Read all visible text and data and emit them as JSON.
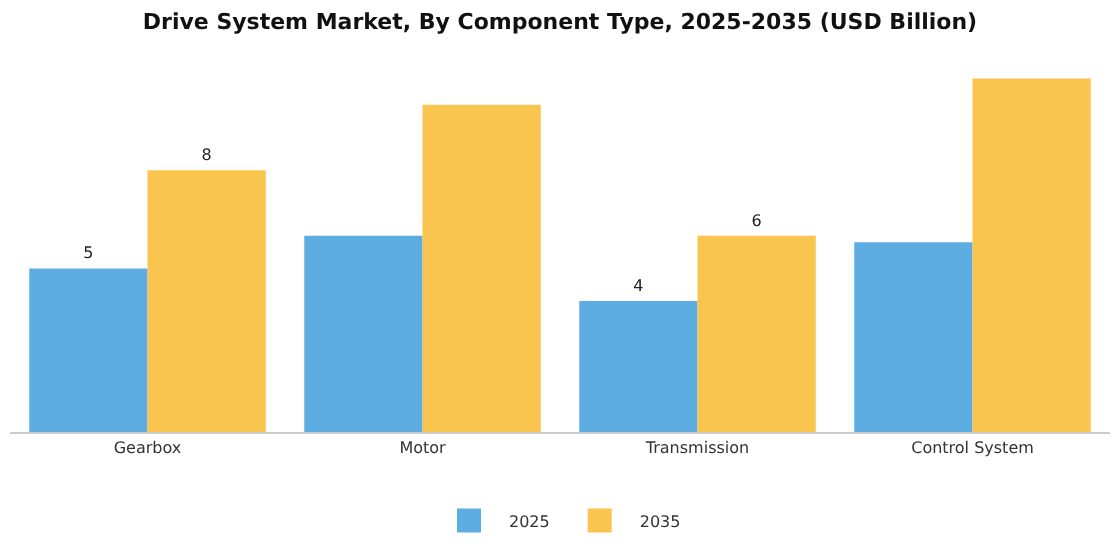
{
  "chart_data": {
    "type": "bar",
    "title": "Drive System Market, By Component Type, 2025-2035 (USD Billion)",
    "categories": [
      "Gearbox",
      "Motor",
      "Transmission",
      "Control System"
    ],
    "series": [
      {
        "name": "2025",
        "color": "#5dade2",
        "values": [
          5,
          6,
          4,
          5.8
        ],
        "value_labels": [
          "5",
          null,
          "4",
          null
        ]
      },
      {
        "name": "2035",
        "color": "#f9c54e",
        "values": [
          8,
          10,
          6,
          10.8
        ],
        "value_labels": [
          "8",
          null,
          "6",
          null
        ]
      }
    ],
    "grid": false,
    "legend": "bottom"
  }
}
